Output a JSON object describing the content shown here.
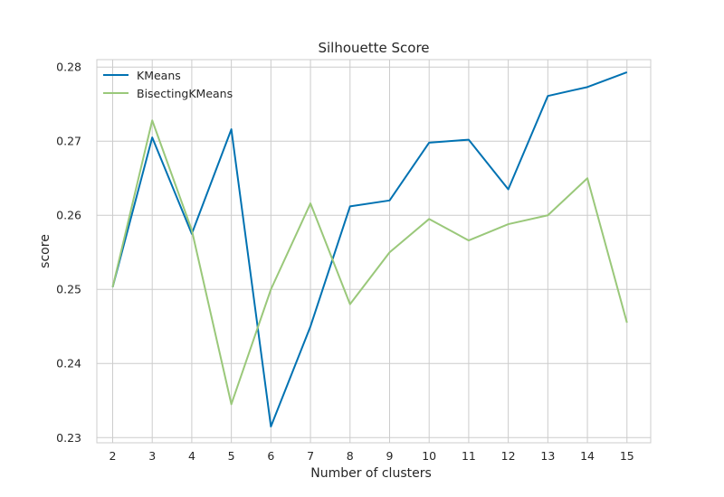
{
  "chart_data": {
    "type": "line",
    "title": "Silhouette Score",
    "xlabel": "Number of clusters",
    "ylabel": "score",
    "x": [
      2,
      3,
      4,
      5,
      6,
      7,
      8,
      9,
      10,
      11,
      12,
      13,
      14,
      15
    ],
    "xlim": [
      1.6,
      15.6
    ],
    "ylim": [
      0.2293,
      0.281
    ],
    "y_ticks": [
      0.23,
      0.24,
      0.25,
      0.26,
      0.27,
      0.28
    ],
    "y_tick_labels": [
      "0.23",
      "0.24",
      "0.25",
      "0.26",
      "0.27",
      "0.28"
    ],
    "grid": true,
    "legend_position": "top-left",
    "series": [
      {
        "name": "KMeans",
        "color": "#0072b2",
        "values": [
          0.2503,
          0.2705,
          0.2575,
          0.2716,
          0.2315,
          0.245,
          0.2612,
          0.262,
          0.2698,
          0.2702,
          0.2635,
          0.2761,
          0.2773,
          0.2793
        ]
      },
      {
        "name": "BisectingKMeans",
        "color": "#9ac87a",
        "values": [
          0.2503,
          0.2728,
          0.258,
          0.2345,
          0.25,
          0.2616,
          0.248,
          0.255,
          0.2595,
          0.2566,
          0.2588,
          0.26,
          0.265,
          0.2455
        ]
      }
    ]
  }
}
